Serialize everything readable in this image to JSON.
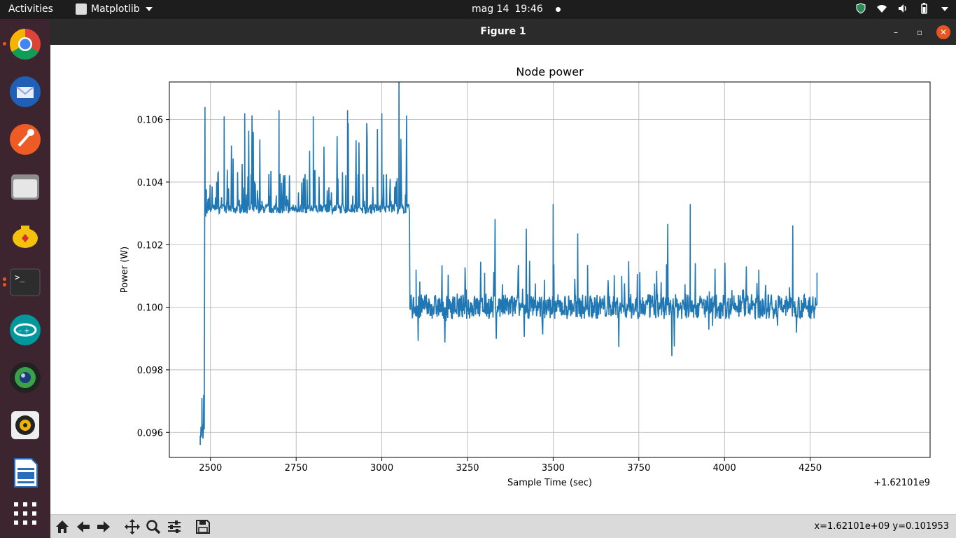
{
  "topbar": {
    "activities": "Activities",
    "app_name": "Matplotlib",
    "date": "mag 14",
    "time": "19:46"
  },
  "dock": {
    "items": [
      "chrome-icon",
      "thunderbird-icon",
      "postman-icon",
      "files-icon",
      "genie-icon",
      "terminal-icon",
      "arduino-icon",
      "camera-icon",
      "rhythmbox-icon",
      "writer-icon",
      "app-grid-icon"
    ]
  },
  "window": {
    "title": "Figure 1",
    "minimize": "–",
    "maximize": "▫",
    "close": "✕"
  },
  "toolbar": {
    "buttons": [
      "home-icon",
      "back-icon",
      "forward-icon",
      "pan-icon",
      "zoom-icon",
      "configure-subplots-icon",
      "save-icon"
    ],
    "coords": "x=1.62101e+09  y=0.101953"
  },
  "colors": {
    "line": "#1f77b4",
    "grid": "#b0b0b0"
  },
  "chart_data": {
    "type": "line",
    "title": "Node power",
    "xlabel": "Sample Time (sec)",
    "ylabel": "Power (W)",
    "x_offset_label": "+1.62101e9",
    "xlim": [
      2380,
      4600
    ],
    "ylim": [
      0.0952,
      0.1072
    ],
    "xticks": [
      2500,
      2750,
      3000,
      3250,
      3500,
      3750,
      4000,
      4250
    ],
    "yticks": [
      0.096,
      0.098,
      0.1,
      0.102,
      0.104,
      0.106
    ],
    "ytick_labels": [
      "0.096",
      "0.098",
      "0.100",
      "0.102",
      "0.104",
      "0.106"
    ],
    "grid": true,
    "series": [
      {
        "x": [
          2470,
          2475,
          2478,
          2480,
          2482,
          2484,
          2486,
          2488,
          2490,
          2495,
          2500,
          2520,
          2540,
          2560,
          2600,
          2650,
          2700,
          2750,
          2800,
          2850,
          2900,
          2950,
          3000,
          3050,
          3080,
          3082,
          3100,
          3200,
          3300,
          3400,
          3500,
          3600,
          3700,
          3800,
          3900,
          4000,
          4100,
          4200,
          4270
        ],
        "y": [
          0.0959,
          0.0971,
          0.0958,
          0.0972,
          0.0961,
          0.1064,
          0.1029,
          0.1031,
          0.103,
          0.1035,
          0.1031,
          0.1033,
          0.1061,
          0.1033,
          0.1062,
          0.1034,
          0.1063,
          0.1032,
          0.1061,
          0.1033,
          0.1063,
          0.1034,
          0.1062,
          0.1072,
          0.1031,
          0.1,
          0.1012,
          0.1002,
          0.1011,
          0.1001,
          0.1033,
          0.1003,
          0.101,
          0.1002,
          0.1033,
          0.1003,
          0.1012,
          0.1002,
          0.1011
        ]
      }
    ]
  }
}
